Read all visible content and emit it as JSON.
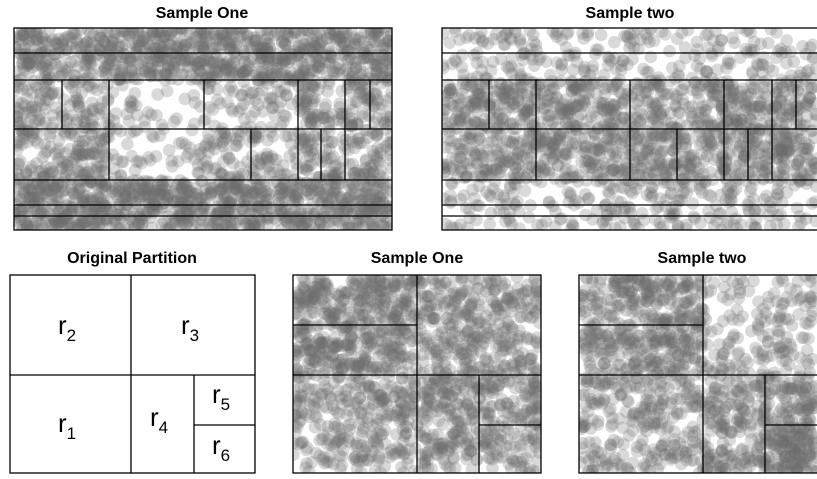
{
  "panels": {
    "top_left": {
      "title": "Sample One"
    },
    "top_right": {
      "title": "Sample two"
    },
    "original": {
      "title": "Original Partition",
      "regions": [
        {
          "base": "r",
          "sub": "2"
        },
        {
          "base": "r",
          "sub": "3"
        },
        {
          "base": "r",
          "sub": "1"
        },
        {
          "base": "r",
          "sub": "4"
        },
        {
          "base": "r",
          "sub": "5"
        },
        {
          "base": "r",
          "sub": "6"
        }
      ]
    },
    "bottom_middle": {
      "title": "Sample One"
    },
    "bottom_right": {
      "title": "Sample two"
    }
  },
  "colors": {
    "dot": "#6e6e6e",
    "line": "#000000",
    "background": "#ffffff"
  }
}
